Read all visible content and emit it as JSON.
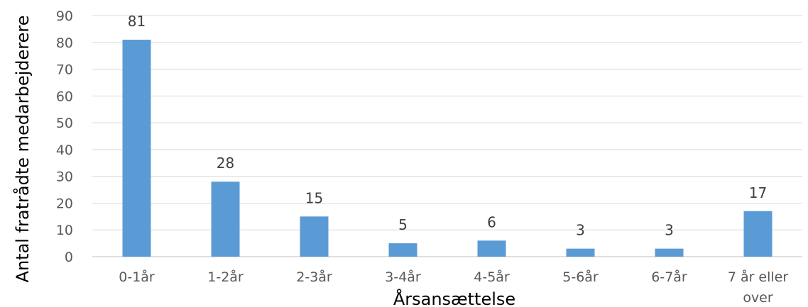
{
  "chart_data": {
    "type": "bar",
    "title": "",
    "xlabel": "Årsansættelse",
    "ylabel": "Antal fratrådte medarbejderere",
    "categories": [
      "0-1år",
      "1-2år",
      "2-3år",
      "3-4år",
      "4-5år",
      "5-6år",
      "6-7år",
      "7 år eller over"
    ],
    "values": [
      81,
      28,
      15,
      5,
      6,
      3,
      3,
      17
    ],
    "ylim": [
      0,
      90
    ],
    "yticks": [
      0,
      10,
      20,
      30,
      40,
      50,
      60,
      70,
      80,
      90
    ],
    "grid": true,
    "legend": "none",
    "colors": {
      "bar": "#5b9bd5",
      "grid": "#d9d9d9",
      "axis": "#bfbfbf",
      "tick_text": "#595959",
      "label_text": "#404040"
    }
  }
}
